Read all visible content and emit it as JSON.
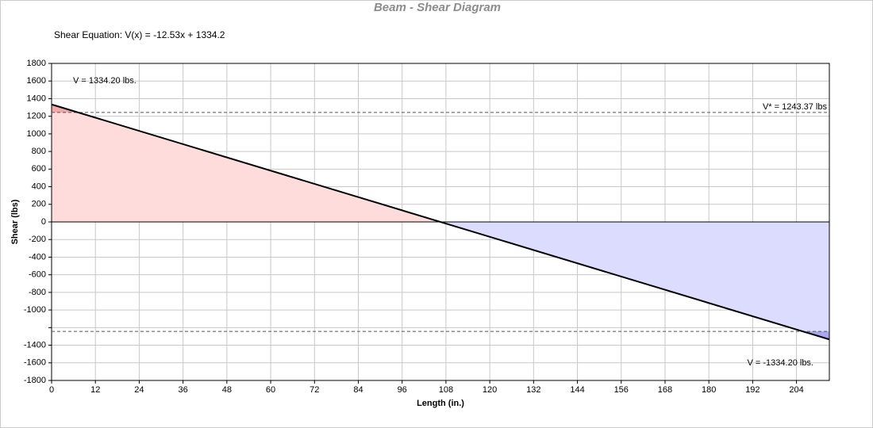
{
  "chart_data": {
    "type": "line",
    "title": "Beam - Shear Diagram",
    "subtitle": "Shear Equation:  V(x) = -12.53x + 1334.2",
    "x_label": "Length (in.)",
    "y_label": "Shear (lbs)",
    "series": [
      {
        "name": "Shear",
        "color": "#000000",
        "x": [
          0,
          213
        ],
        "values": [
          1334.2,
          -1334.2
        ]
      }
    ],
    "positive_fill": "#ffdcdc",
    "negative_fill": "#dcdcff",
    "limit_lines": [
      1243.37,
      -1243.37
    ],
    "annotations": [
      "V = 1334.20 lbs.",
      "V* = 1243.37 lbs",
      "V = -1334.20 lbs."
    ],
    "xlim": [
      0,
      213
    ],
    "xticks": [
      0,
      12,
      24,
      36,
      48,
      60,
      72,
      84,
      96,
      108,
      120,
      132,
      144,
      156,
      168,
      180,
      192,
      204
    ],
    "ylim": [
      -1800,
      1800
    ],
    "yticks": [
      1800,
      1600,
      1400,
      1200,
      1000,
      800,
      600,
      400,
      200,
      0,
      -200,
      -400,
      -600,
      -800,
      -1000,
      {
        "value": -1200,
        "label": null
      },
      -1400,
      -1600,
      -1800
    ],
    "grid": true
  }
}
